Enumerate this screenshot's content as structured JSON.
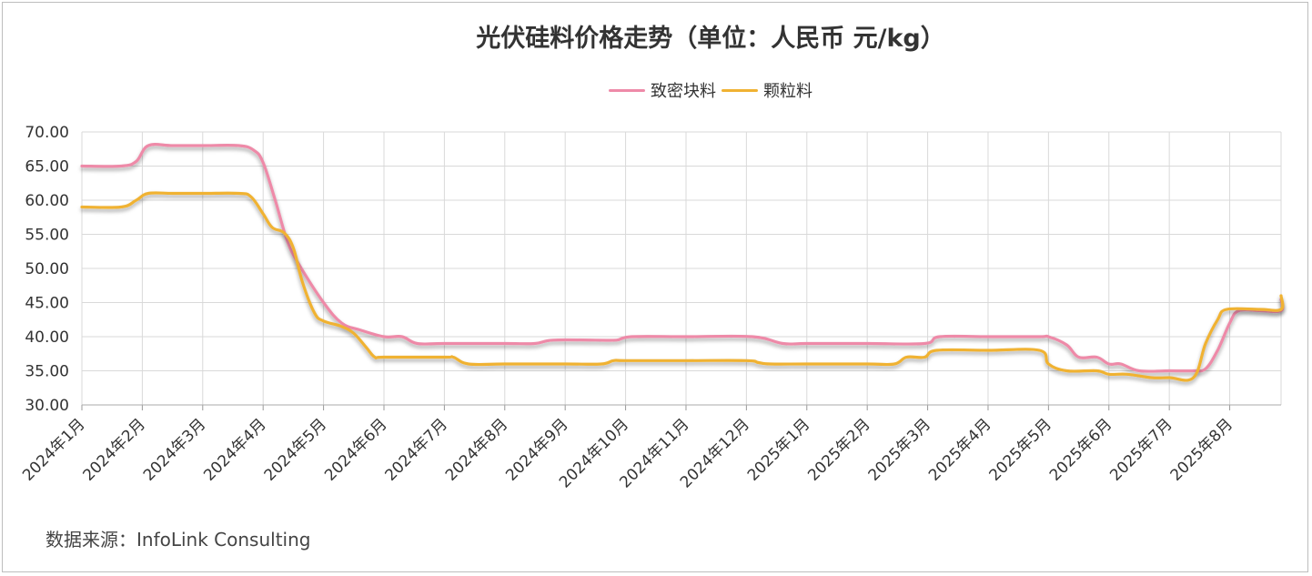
{
  "chart_data": {
    "type": "line",
    "title": "光伏硅料价格走势（单位：人民币 元/kg）",
    "ylim": [
      30,
      70
    ],
    "yticks": [
      "30.00",
      "35.00",
      "40.00",
      "45.00",
      "50.00",
      "55.00",
      "60.00",
      "65.00",
      "70.00"
    ],
    "categories": [
      "2024年1月",
      "2024年2月",
      "2024年3月",
      "2024年4月",
      "2024年5月",
      "2024年6月",
      "2024年7月",
      "2024年8月",
      "2024年9月",
      "2024年10月",
      "2024年11月",
      "2024年12月",
      "2025年1月",
      "2025年2月",
      "2025年3月",
      "2025年4月",
      "2025年5月",
      "2025年6月",
      "2025年7月",
      "2025年8月"
    ],
    "legend_position": "top-center",
    "grid": true,
    "series": [
      {
        "name": "致密块料",
        "color": "#ee8aa8",
        "points": [
          [
            0.0,
            65.0
          ],
          [
            0.65,
            65.0
          ],
          [
            0.9,
            65.7
          ],
          [
            1.1,
            68.0
          ],
          [
            1.5,
            68.0
          ],
          [
            2.0,
            68.0
          ],
          [
            2.6,
            68.0
          ],
          [
            2.85,
            67.3
          ],
          [
            3.0,
            65.5
          ],
          [
            3.2,
            60.0
          ],
          [
            3.4,
            54.0
          ],
          [
            3.6,
            50.5
          ],
          [
            4.0,
            45.0
          ],
          [
            4.3,
            42.0
          ],
          [
            4.6,
            41.0
          ],
          [
            5.0,
            40.0
          ],
          [
            5.3,
            40.0
          ],
          [
            5.55,
            39.0
          ],
          [
            6.0,
            39.0
          ],
          [
            7.0,
            39.0
          ],
          [
            7.5,
            39.0
          ],
          [
            7.8,
            39.5
          ],
          [
            8.5,
            39.5
          ],
          [
            8.85,
            39.5
          ],
          [
            9.1,
            40.0
          ],
          [
            10.0,
            40.0
          ],
          [
            11.1,
            40.0
          ],
          [
            11.6,
            39.0
          ],
          [
            12.0,
            39.0
          ],
          [
            13.0,
            39.0
          ],
          [
            13.95,
            39.0
          ],
          [
            14.2,
            40.0
          ],
          [
            15.0,
            40.0
          ],
          [
            15.85,
            40.0
          ],
          [
            16.0,
            40.0
          ],
          [
            16.3,
            38.8
          ],
          [
            16.5,
            37.0
          ],
          [
            16.8,
            37.0
          ],
          [
            17.0,
            36.0
          ],
          [
            17.2,
            36.0
          ],
          [
            17.5,
            35.0
          ],
          [
            18.0,
            35.0
          ],
          [
            18.4,
            35.0
          ],
          [
            18.6,
            35.3
          ],
          [
            18.8,
            38.0
          ],
          [
            19.0,
            42.0
          ],
          [
            19.15,
            43.8
          ],
          [
            19.5,
            43.8
          ],
          [
            19.9,
            43.8
          ],
          [
            20.1,
            45.5
          ]
        ]
      },
      {
        "name": "颗粒料",
        "color": "#f0b232",
        "points": [
          [
            0.0,
            59.0
          ],
          [
            0.65,
            59.0
          ],
          [
            0.9,
            60.0
          ],
          [
            1.1,
            61.0
          ],
          [
            1.5,
            61.0
          ],
          [
            2.0,
            61.0
          ],
          [
            2.6,
            61.0
          ],
          [
            2.8,
            60.5
          ],
          [
            3.0,
            58.0
          ],
          [
            3.15,
            56.0
          ],
          [
            3.35,
            55.2
          ],
          [
            3.5,
            53.0
          ],
          [
            3.65,
            48.0
          ],
          [
            3.85,
            43.5
          ],
          [
            4.0,
            42.3
          ],
          [
            4.3,
            41.5
          ],
          [
            4.5,
            40.5
          ],
          [
            4.7,
            38.5
          ],
          [
            4.85,
            37.0
          ],
          [
            5.0,
            37.0
          ],
          [
            6.0,
            37.0
          ],
          [
            6.15,
            37.0
          ],
          [
            6.4,
            36.0
          ],
          [
            7.0,
            36.0
          ],
          [
            8.0,
            36.0
          ],
          [
            8.6,
            36.0
          ],
          [
            8.8,
            36.5
          ],
          [
            9.0,
            36.5
          ],
          [
            10.0,
            36.5
          ],
          [
            11.0,
            36.5
          ],
          [
            11.2,
            36.2
          ],
          [
            11.4,
            36.0
          ],
          [
            12.0,
            36.0
          ],
          [
            13.0,
            36.0
          ],
          [
            13.45,
            36.0
          ],
          [
            13.65,
            37.0
          ],
          [
            13.95,
            37.0
          ],
          [
            14.15,
            38.0
          ],
          [
            15.0,
            38.0
          ],
          [
            15.85,
            38.0
          ],
          [
            16.0,
            36.0
          ],
          [
            16.3,
            35.0
          ],
          [
            16.8,
            35.0
          ],
          [
            17.0,
            34.5
          ],
          [
            17.3,
            34.5
          ],
          [
            17.7,
            34.0
          ],
          [
            18.0,
            34.0
          ],
          [
            18.4,
            34.0
          ],
          [
            18.6,
            39.0
          ],
          [
            18.8,
            42.5
          ],
          [
            18.95,
            44.0
          ],
          [
            19.5,
            44.0
          ],
          [
            19.9,
            44.0
          ],
          [
            20.1,
            46.0
          ]
        ]
      }
    ],
    "source": "数据来源：InfoLink Consulting"
  }
}
